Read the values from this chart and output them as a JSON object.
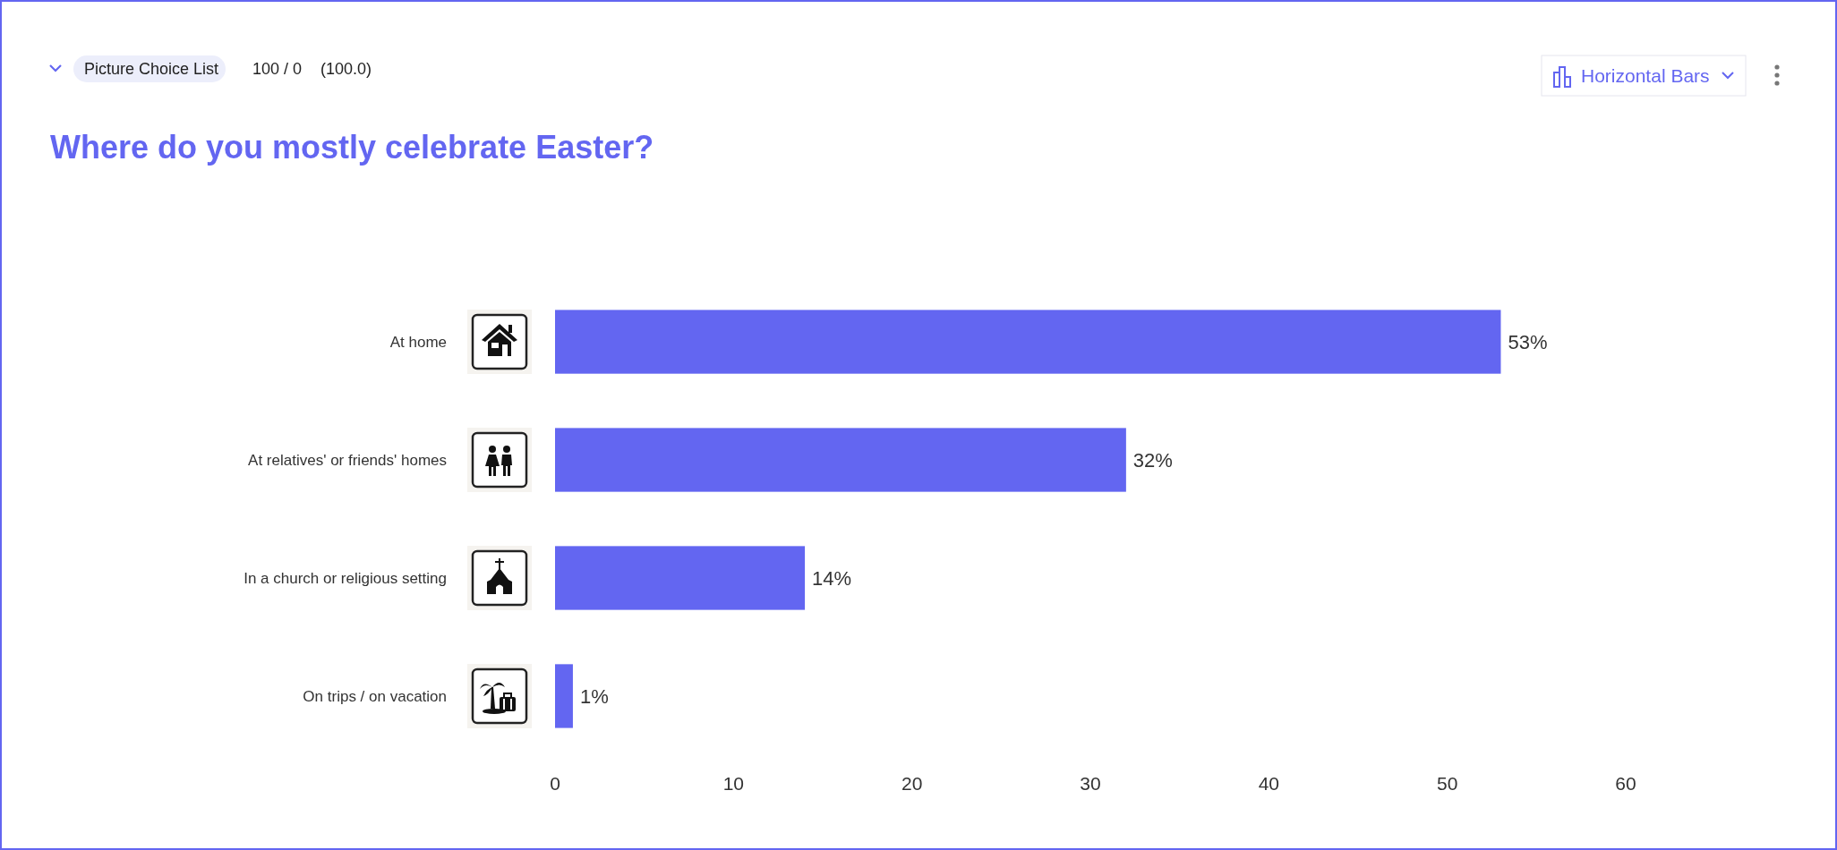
{
  "chart_data": {
    "type": "bar",
    "orientation": "horizontal",
    "title": "Where do you mostly celebrate Easter?",
    "annotations": [
      "Picture Choice List",
      "100 / 0",
      "(100.0)",
      "Horizontal Bars"
    ],
    "categories": [
      "At home",
      "At relatives' or friends' homes",
      "In a church or religious setting",
      "On trips / on vacation"
    ],
    "values": [
      53,
      32,
      14,
      1
    ],
    "value_labels": [
      "53%",
      "32%",
      "14%",
      "1%"
    ],
    "color": "#6366f1",
    "xlim": [
      0,
      60
    ],
    "xticks": [
      0,
      10,
      20,
      30,
      40,
      50,
      60
    ]
  }
}
